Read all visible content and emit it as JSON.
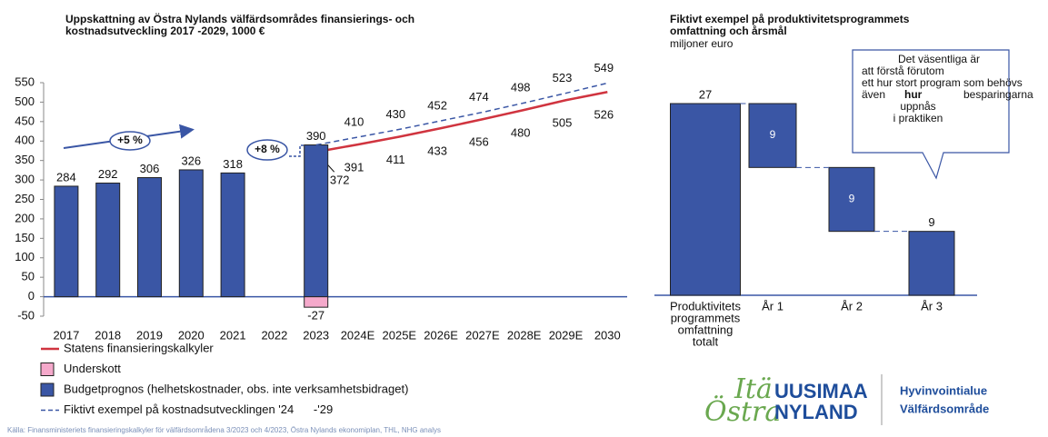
{
  "chart_data": [
    {
      "type": "bar-line",
      "title": [
        "Uppskattning av Östra Nylands välfärdsområdes finansierings- och",
        "kostnadsutveckling 2017 -2029, 1000 €"
      ],
      "categories": [
        "2017",
        "2018",
        "2019",
        "2020",
        "2021",
        "2022",
        "2023",
        "2024E",
        "2025E",
        "2026E",
        "2027E",
        "2028E",
        "2029E",
        "2030"
      ],
      "ylim": [
        -50,
        550
      ],
      "yticks": [
        -50,
        0,
        50,
        100,
        150,
        200,
        250,
        300,
        350,
        400,
        450,
        500,
        550
      ],
      "series": [
        {
          "name": "Statens finansieringskalkyler",
          "kind": "line",
          "color": "#d0343f",
          "values": [
            null,
            null,
            null,
            null,
            null,
            null,
            372,
            391,
            411,
            433,
            456,
            480,
            505,
            526
          ]
        },
        {
          "name": "Underskott",
          "kind": "bar",
          "color": "#f5a9cb",
          "values": [
            null,
            null,
            null,
            null,
            null,
            null,
            -27,
            null,
            null,
            null,
            null,
            null,
            null,
            null
          ]
        },
        {
          "name": "Budgetprognos (helhetskostnader, obs. inte verksamhetsbidraget)",
          "kind": "bar",
          "color": "#3a56a5",
          "values": [
            284,
            292,
            306,
            326,
            318,
            null,
            390,
            null,
            null,
            null,
            null,
            null,
            null,
            null
          ]
        },
        {
          "name": "Fiktivt exempel på kostnadsutvecklingen '24      -'29",
          "kind": "dashed",
          "color": "#3a56a5",
          "values": [
            null,
            null,
            null,
            null,
            null,
            null,
            390,
            410,
            430,
            452,
            474,
            498,
            523,
            549
          ]
        }
      ],
      "annotations": [
        "+5 %",
        "+8 %"
      ]
    },
    {
      "type": "waterfall",
      "title": [
        "Fiktivt exempel på produktivitetsprogrammets",
        "omfattning och årsmål"
      ],
      "subtitle": "miljoner euro",
      "categories": [
        [
          "Produktivitets",
          "programmets",
          "omfattning",
          "totalt"
        ],
        [
          "År 1"
        ],
        [
          "År 2"
        ],
        [
          "År 3"
        ]
      ],
      "values": [
        27,
        9,
        9,
        9
      ],
      "color": "#3a56a5",
      "callout": {
        "lines": [
          "Det väsentliga är",
          "att förstå förutom",
          "ett hur stort program som behövs"
        ],
        "row": [
          "även",
          "hur",
          "besparingarna"
        ],
        "tail": [
          "uppnås",
          "i praktiken"
        ]
      }
    }
  ],
  "logo": {
    "ita": "Itä",
    "uusimaa": "UUSIMAA",
    "ostra": "Östra",
    "nyland": "NYLAND",
    "fi": "Hyvinvointialue",
    "sv": "Välfärdsområde"
  },
  "source": "Källa: Finansministeriets finansieringskalkyler för välfärdsområdena 3/2023 och 4/2023, Östra Nylands ekonomiplan, THL, NHG analys"
}
